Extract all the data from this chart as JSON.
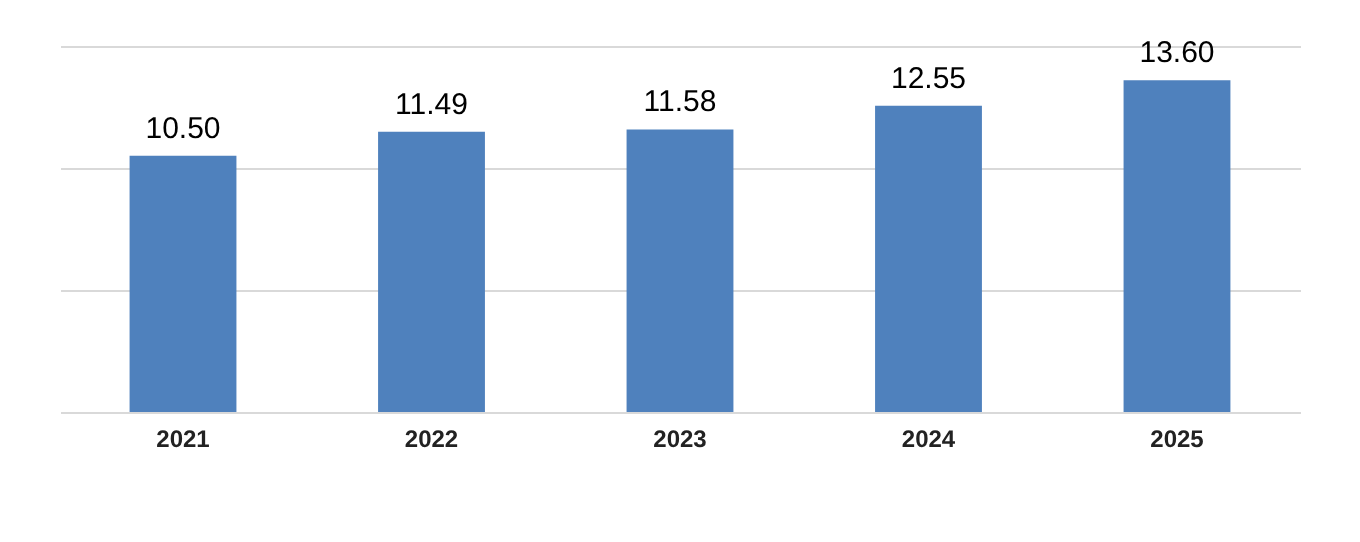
{
  "chart_data": {
    "type": "bar",
    "categories": [
      "2021",
      "2022",
      "2023",
      "2024",
      "2025"
    ],
    "values": [
      10.5,
      11.49,
      11.58,
      12.55,
      13.6
    ],
    "value_labels": [
      "10.50",
      "11.49",
      "11.58",
      "12.55",
      "13.60"
    ],
    "color": "#4f81bd",
    "ylim": [
      0,
      15
    ],
    "yticks": [
      0,
      5,
      10,
      15
    ],
    "grid": "y",
    "tick_labels": "x"
  }
}
